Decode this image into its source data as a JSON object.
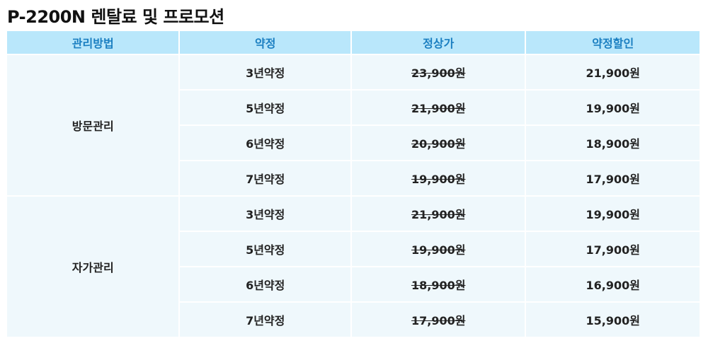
{
  "title": "P-2200N 렌탈료 및 프로모션",
  "colors": {
    "header_bg": "#b9e7fb",
    "header_text": "#1b7fc1",
    "cell_bg": "#eff8fc"
  },
  "headers": [
    "관리방법",
    "약정",
    "정상가",
    "약정할인"
  ],
  "groups": [
    {
      "method": "방문관리",
      "rows": [
        {
          "term": "3년약정",
          "regular": "23,900원",
          "discount": "21,900원"
        },
        {
          "term": "5년약정",
          "regular": "21,900원",
          "discount": "19,900원"
        },
        {
          "term": "6년약정",
          "regular": "20,900원",
          "discount": "18,900원"
        },
        {
          "term": "7년약정",
          "regular": "19,900원",
          "discount": "17,900원"
        }
      ]
    },
    {
      "method": "자가관리",
      "rows": [
        {
          "term": "3년약정",
          "regular": "21,900원",
          "discount": "19,900원"
        },
        {
          "term": "5년약정",
          "regular": "19,900원",
          "discount": "17,900원"
        },
        {
          "term": "6년약정",
          "regular": "18,900원",
          "discount": "16,900원"
        },
        {
          "term": "7년약정",
          "regular": "17,900원",
          "discount": "15,900원"
        }
      ]
    }
  ]
}
